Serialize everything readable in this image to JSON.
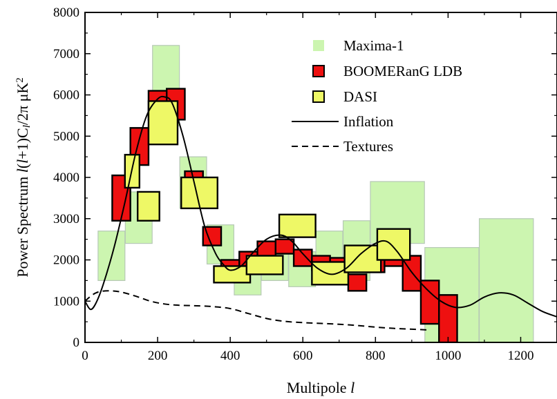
{
  "chart_data": {
    "type": "scatter",
    "title": "",
    "xlabel": "Multipole l",
    "ylabel": "Power Spectrum l(l+1)C_l/2π μK²",
    "xlabel_parts": {
      "text": "Multipole ",
      "italic": "l"
    },
    "ylabel_parts": [
      "Power Spectrum ",
      "l",
      "(",
      "l",
      "+1)C",
      "l",
      "/2π μK",
      "2"
    ],
    "xlim": [
      0,
      1300
    ],
    "ylim": [
      0,
      8000
    ],
    "xticks": [
      0,
      200,
      400,
      600,
      800,
      1000,
      1200
    ],
    "yticks": [
      0,
      1000,
      2000,
      3000,
      4000,
      5000,
      6000,
      7000,
      8000
    ],
    "grid": false,
    "legend_position": "top-right",
    "colors": {
      "maxima_fill": "#ccf5b0",
      "maxima_edge": "#b6c8b6",
      "boomerang_fill": "#ee1010",
      "dasi_fill": "#eef866",
      "box_edge": "#000000",
      "line": "#000000"
    },
    "series": [
      {
        "name": "Maxima-1",
        "kind": "error-box",
        "boxes": [
          {
            "x0": 36,
            "x1": 110,
            "y0": 1500,
            "y1": 2700
          },
          {
            "x0": 111,
            "x1": 185,
            "y0": 2400,
            "y1": 3650
          },
          {
            "x0": 186,
            "x1": 260,
            "y0": 5250,
            "y1": 7200
          },
          {
            "x0": 261,
            "x1": 335,
            "y0": 3250,
            "y1": 4500
          },
          {
            "x0": 336,
            "x1": 410,
            "y0": 1900,
            "y1": 2850
          },
          {
            "x0": 411,
            "x1": 485,
            "y0": 1150,
            "y1": 2000
          },
          {
            "x0": 486,
            "x1": 560,
            "y0": 1500,
            "y1": 2350
          },
          {
            "x0": 561,
            "x1": 635,
            "y0": 1350,
            "y1": 2200
          },
          {
            "x0": 636,
            "x1": 710,
            "y0": 1800,
            "y1": 2700
          },
          {
            "x0": 711,
            "x1": 785,
            "y0": 1500,
            "y1": 2950
          },
          {
            "x0": 786,
            "x1": 935,
            "y0": 2400,
            "y1": 3900
          },
          {
            "x0": 936,
            "x1": 1085,
            "y0": 0,
            "y1": 2300
          },
          {
            "x0": 1086,
            "x1": 1235,
            "y0": 0,
            "y1": 3000
          }
        ]
      },
      {
        "name": "BOOMERanG LDB",
        "kind": "error-box",
        "boxes": [
          {
            "x0": 75,
            "x1": 125,
            "y0": 2950,
            "y1": 4050
          },
          {
            "x0": 125,
            "x1": 175,
            "y0": 4300,
            "y1": 5200
          },
          {
            "x0": 175,
            "x1": 225,
            "y0": 5400,
            "y1": 6100
          },
          {
            "x0": 225,
            "x1": 275,
            "y0": 5400,
            "y1": 6150
          },
          {
            "x0": 275,
            "x1": 325,
            "y0": 3700,
            "y1": 4150
          },
          {
            "x0": 325,
            "x1": 375,
            "y0": 2350,
            "y1": 2800
          },
          {
            "x0": 375,
            "x1": 425,
            "y0": 1700,
            "y1": 2000
          },
          {
            "x0": 425,
            "x1": 475,
            "y0": 1850,
            "y1": 2200
          },
          {
            "x0": 475,
            "x1": 525,
            "y0": 2100,
            "y1": 2450
          },
          {
            "x0": 525,
            "x1": 575,
            "y0": 2150,
            "y1": 2500
          },
          {
            "x0": 575,
            "x1": 625,
            "y0": 1850,
            "y1": 2250
          },
          {
            "x0": 625,
            "x1": 675,
            "y0": 1750,
            "y1": 2100
          },
          {
            "x0": 675,
            "x1": 725,
            "y0": 1650,
            "y1": 2050
          },
          {
            "x0": 725,
            "x1": 775,
            "y0": 1250,
            "y1": 1650
          },
          {
            "x0": 775,
            "x1": 825,
            "y0": 1700,
            "y1": 2150
          },
          {
            "x0": 825,
            "x1": 875,
            "y0": 1850,
            "y1": 2600
          },
          {
            "x0": 875,
            "x1": 925,
            "y0": 1250,
            "y1": 2100
          },
          {
            "x0": 925,
            "x1": 975,
            "y0": 450,
            "y1": 1500
          },
          {
            "x0": 975,
            "x1": 1025,
            "y0": 0,
            "y1": 1150
          }
        ]
      },
      {
        "name": "DASI",
        "kind": "error-box",
        "boxes": [
          {
            "x0": 110,
            "x1": 150,
            "y0": 3750,
            "y1": 4550
          },
          {
            "x0": 145,
            "x1": 205,
            "y0": 2950,
            "y1": 3650
          },
          {
            "x0": 175,
            "x1": 255,
            "y0": 4800,
            "y1": 5850
          },
          {
            "x0": 265,
            "x1": 365,
            "y0": 3250,
            "y1": 4000
          },
          {
            "x0": 355,
            "x1": 455,
            "y0": 1450,
            "y1": 1850
          },
          {
            "x0": 445,
            "x1": 545,
            "y0": 1650,
            "y1": 2100
          },
          {
            "x0": 535,
            "x1": 635,
            "y0": 2550,
            "y1": 3100
          },
          {
            "x0": 625,
            "x1": 725,
            "y0": 1400,
            "y1": 1950
          },
          {
            "x0": 715,
            "x1": 815,
            "y0": 1700,
            "y1": 2350
          },
          {
            "x0": 805,
            "x1": 895,
            "y0": 2000,
            "y1": 2750
          }
        ]
      },
      {
        "name": "Inflation",
        "kind": "line",
        "style": "solid",
        "x": [
          0,
          15,
          30,
          50,
          80,
          110,
          140,
          170,
          200,
          220,
          240,
          270,
          300,
          330,
          360,
          380,
          400,
          430,
          460,
          500,
          540,
          570,
          600,
          640,
          680,
          720,
          760,
          800,
          830,
          860,
          900,
          940,
          980,
          1020,
          1060,
          1100,
          1140,
          1180,
          1220,
          1260,
          1300
        ],
        "y": [
          1000,
          800,
          950,
          1400,
          2300,
          3400,
          4600,
          5500,
          5900,
          5950,
          5800,
          5000,
          3900,
          2800,
          2150,
          1900,
          1750,
          1850,
          2150,
          2500,
          2600,
          2450,
          2150,
          1800,
          1650,
          1800,
          2150,
          2400,
          2450,
          2200,
          1700,
          1300,
          1000,
          850,
          900,
          1100,
          1200,
          1150,
          950,
          750,
          620
        ]
      },
      {
        "name": "Textures",
        "kind": "line",
        "style": "dashed",
        "x": [
          0,
          20,
          40,
          70,
          100,
          140,
          180,
          220,
          260,
          300,
          350,
          400,
          450,
          500,
          550,
          600,
          650,
          700,
          750,
          800,
          850,
          900,
          950
        ],
        "y": [
          1000,
          1150,
          1230,
          1250,
          1220,
          1120,
          1000,
          930,
          900,
          890,
          870,
          820,
          700,
          580,
          510,
          480,
          460,
          440,
          410,
          370,
          340,
          320,
          300
        ]
      }
    ]
  }
}
